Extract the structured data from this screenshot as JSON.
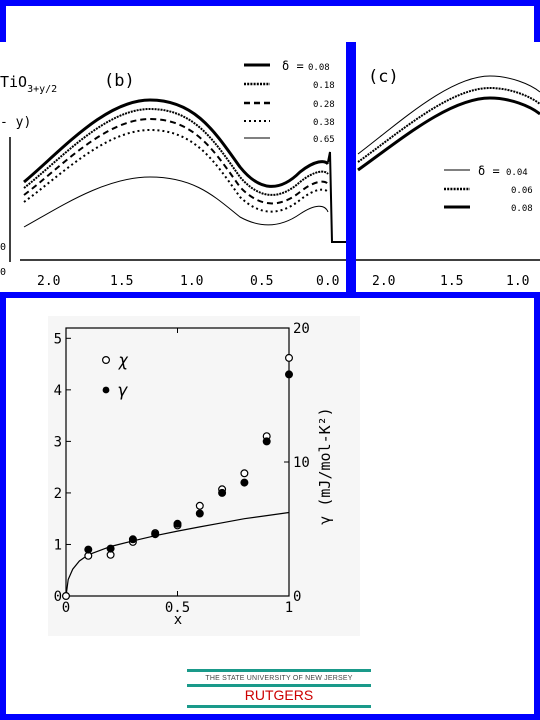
{
  "top_panels": {
    "panel_b": {
      "formula_base": "TiO",
      "formula_sub": "3+y/2",
      "label": "(b)",
      "side_label": "- y)",
      "legend": [
        {
          "symbol": "δ =",
          "value": "0.08",
          "style": "thick-solid"
        },
        {
          "symbol": "",
          "value": "0.18",
          "style": "dotted-thick"
        },
        {
          "symbol": "",
          "value": "0.28",
          "style": "dashed"
        },
        {
          "symbol": "",
          "value": "0.38",
          "style": "dotted"
        },
        {
          "symbol": "",
          "value": "0.65",
          "style": "thin-solid"
        }
      ],
      "ticks": [
        "2.0",
        "1.5",
        "1.0",
        "0.5",
        "0.0"
      ]
    },
    "panel_c": {
      "label": "(c)",
      "legend": [
        {
          "symbol": "δ =",
          "value": "0.04",
          "style": "thin-solid"
        },
        {
          "symbol": "",
          "value": "0.06",
          "style": "dotted-thick"
        },
        {
          "symbol": "",
          "value": "0.08",
          "style": "thick-solid"
        }
      ],
      "ticks": [
        "2.0",
        "1.5",
        "1.0"
      ]
    },
    "left_ticks": [
      "0",
      "0"
    ]
  },
  "chart_data": {
    "type": "scatter",
    "xlabel": "x",
    "ylabel_right": "γ  (mJ/mol-K²)",
    "xlim": [
      0,
      1
    ],
    "ylim_left": [
      0,
      5.2
    ],
    "ylim_right": [
      0,
      20
    ],
    "x_ticks": [
      "0",
      "0.5",
      "1"
    ],
    "y_left_ticks": [
      "0",
      "1",
      "2",
      "3",
      "4",
      "5"
    ],
    "y_right_ticks": [
      "0",
      "10",
      "20"
    ],
    "legend": [
      {
        "symbol": "o",
        "label": "χ"
      },
      {
        "symbol": "•",
        "label": "γ"
      }
    ],
    "series": [
      {
        "label": "χ",
        "marker": "open-circle",
        "x": [
          0.0,
          0.1,
          0.2,
          0.3,
          0.4,
          0.5,
          0.6,
          0.7,
          0.8,
          0.9,
          1.0
        ],
        "y": [
          0.0,
          0.78,
          0.8,
          1.05,
          1.22,
          1.37,
          1.75,
          2.07,
          2.38,
          3.1,
          4.62
        ]
      },
      {
        "label": "γ",
        "marker": "filled-circle",
        "x": [
          0.1,
          0.2,
          0.3,
          0.4,
          0.5,
          0.6,
          0.7,
          0.8,
          0.9,
          1.0
        ],
        "y": [
          0.9,
          0.92,
          1.1,
          1.2,
          1.4,
          1.6,
          2.0,
          2.2,
          3.0,
          4.3
        ]
      },
      {
        "label": "",
        "marker": "line",
        "x": [
          0.0,
          0.01,
          0.03,
          0.06,
          0.1,
          0.2,
          0.3,
          0.4,
          0.5,
          0.6,
          0.7,
          0.8,
          0.9,
          1.0
        ],
        "y": [
          0.0,
          0.32,
          0.52,
          0.68,
          0.8,
          0.96,
          1.07,
          1.17,
          1.26,
          1.34,
          1.42,
          1.5,
          1.56,
          1.62
        ]
      }
    ]
  },
  "footer": {
    "university": "THE STATE UNIVERSITY OF NEW JERSEY",
    "name": "RUTGERS"
  }
}
